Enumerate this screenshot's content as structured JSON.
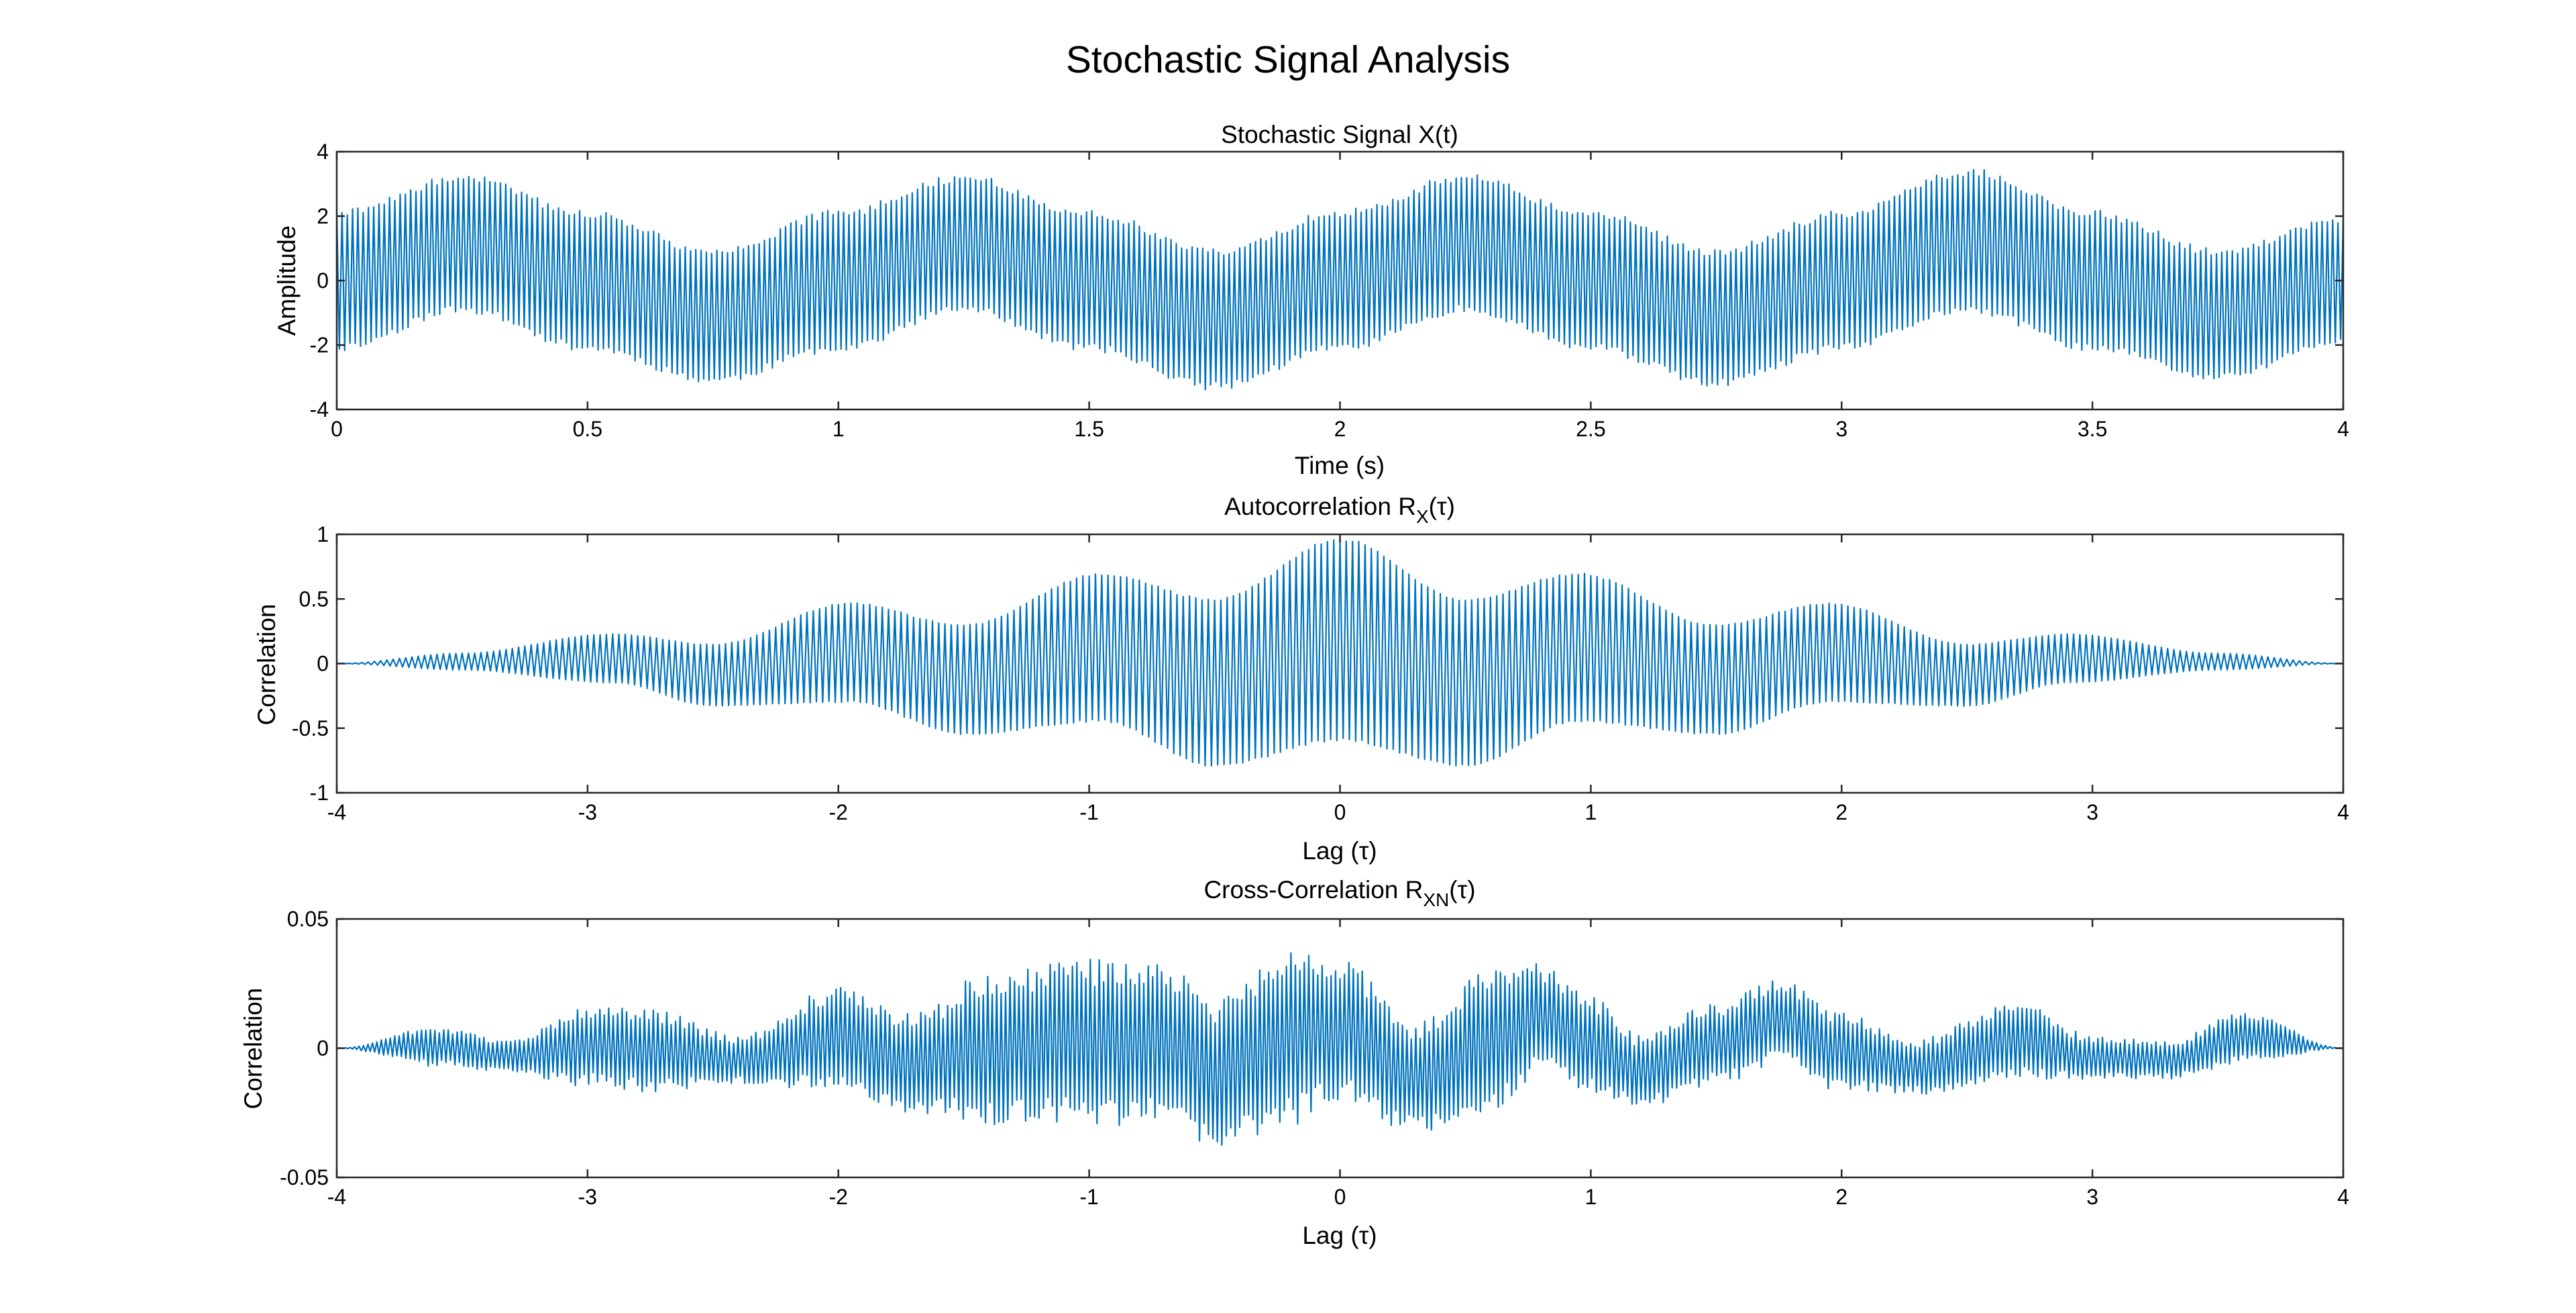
{
  "figure": {
    "title": "Stochastic Signal Analysis"
  },
  "colors": {
    "series": "#0072BD",
    "axes": "#262626",
    "background": "#FFFFFF"
  },
  "chart_data": [
    {
      "type": "line",
      "title": "Stochastic Signal X(t)",
      "xlabel": "Time (s)",
      "ylabel": "Amplitude",
      "xlim": [
        0,
        4
      ],
      "ylim": [
        -4,
        4
      ],
      "xticks": [
        0,
        0.5,
        1,
        1.5,
        2,
        2.5,
        3,
        3.5,
        4
      ],
      "xtick_labels": [
        "0",
        "0.5",
        "1",
        "1.5",
        "2",
        "2.5",
        "3",
        "3.5",
        "4"
      ],
      "yticks": [
        -4,
        -2,
        0,
        2,
        4
      ],
      "ytick_labels": [
        "-4",
        "-2",
        "0",
        "2",
        "4"
      ],
      "grid": false,
      "series": [
        {
          "envelope_x": [
            0,
            0.25,
            0.5,
            0.75,
            1.0,
            1.25,
            1.5,
            1.75,
            2.0,
            2.25,
            2.5,
            2.75,
            3.0,
            3.25,
            3.5,
            3.75,
            4.0
          ],
          "envelope_upper": [
            2.2,
            3.3,
            2.2,
            1.0,
            2.2,
            3.3,
            2.2,
            1.0,
            2.2,
            3.3,
            2.2,
            1.0,
            2.2,
            3.5,
            2.2,
            1.0,
            2.0
          ],
          "envelope_lower": [
            -2.2,
            -1.0,
            -2.2,
            -3.2,
            -2.2,
            -1.0,
            -2.2,
            -3.4,
            -2.2,
            -1.0,
            -2.2,
            -3.3,
            -2.2,
            -1.0,
            -2.2,
            -3.1,
            -2.0
          ]
        }
      ]
    },
    {
      "type": "line",
      "title": "Autocorrelation R",
      "title_sub": "X",
      "title_arg": "(τ)",
      "xlabel": "Lag (τ)",
      "ylabel": "Correlation",
      "xlim": [
        -4,
        4
      ],
      "ylim": [
        -1,
        1
      ],
      "xticks": [
        -4,
        -3,
        -2,
        -1,
        0,
        1,
        2,
        3,
        4
      ],
      "xtick_labels": [
        "-4",
        "-3",
        "-2",
        "-1",
        "0",
        "1",
        "2",
        "3",
        "4"
      ],
      "yticks": [
        -1,
        -0.5,
        0,
        0.5,
        1
      ],
      "ytick_labels": [
        "-1",
        "-0.5",
        "0",
        "0.5",
        "1"
      ],
      "grid": false,
      "series": [
        {
          "envelope_x": [
            -4,
            -3.5,
            -2.9,
            -2.5,
            -1.95,
            -1.5,
            -0.95,
            -0.5,
            0,
            0.5,
            0.95,
            1.5,
            1.95,
            2.5,
            2.9,
            3.5,
            4
          ],
          "envelope_upper": [
            0,
            0.08,
            0.23,
            0.15,
            0.47,
            0.3,
            0.7,
            0.5,
            0.97,
            0.5,
            0.7,
            0.3,
            0.47,
            0.15,
            0.23,
            0.08,
            0
          ],
          "envelope_lower": [
            0,
            -0.05,
            -0.15,
            -0.33,
            -0.3,
            -0.55,
            -0.45,
            -0.8,
            -0.6,
            -0.8,
            -0.45,
            -0.55,
            -0.3,
            -0.33,
            -0.15,
            -0.05,
            0
          ]
        }
      ]
    },
    {
      "type": "line",
      "title": "Cross-Correlation R",
      "title_sub": "XN",
      "title_arg": "(τ)",
      "xlabel": "Lag (τ)",
      "ylabel": "Correlation",
      "xlim": [
        -4,
        4
      ],
      "ylim": [
        -0.05,
        0.05
      ],
      "xticks": [
        -4,
        -3,
        -2,
        -1,
        0,
        1,
        2,
        3,
        4
      ],
      "xtick_labels": [
        "-4",
        "-3",
        "-2",
        "-1",
        "0",
        "1",
        "2",
        "3",
        "4"
      ],
      "yticks": [
        -0.05,
        0,
        0.05
      ],
      "ytick_labels": [
        "-0.05",
        "0",
        "0.05"
      ],
      "grid": false,
      "series": [
        {
          "envelope_x": [
            -4,
            -3.6,
            -3.3,
            -3.0,
            -2.75,
            -2.4,
            -2.0,
            -1.7,
            -1.4,
            -1.0,
            -0.7,
            -0.5,
            -0.2,
            0,
            0.3,
            0.6,
            0.8,
            1.0,
            1.2,
            1.5,
            1.75,
            2.0,
            2.3,
            2.7,
            3.0,
            3.3,
            3.6,
            4
          ],
          "envelope_upper": [
            0.0,
            0.008,
            0.003,
            0.017,
            0.015,
            0.005,
            0.024,
            0.014,
            0.03,
            0.035,
            0.034,
            0.02,
            0.04,
            0.035,
            0.01,
            0.03,
            0.033,
            0.02,
            0.005,
            0.018,
            0.027,
            0.014,
            0.004,
            0.018,
            0.005,
            0.003,
            0.014,
            0.0
          ],
          "envelope_lower": [
            0.0,
            -0.007,
            -0.01,
            -0.015,
            -0.017,
            -0.014,
            -0.017,
            -0.025,
            -0.03,
            -0.03,
            -0.03,
            -0.04,
            -0.03,
            -0.02,
            -0.033,
            -0.025,
            -0.01,
            -0.017,
            -0.023,
            -0.015,
            -0.006,
            -0.017,
            -0.018,
            -0.012,
            -0.012,
            -0.012,
            -0.006,
            0.0
          ]
        }
      ]
    }
  ]
}
